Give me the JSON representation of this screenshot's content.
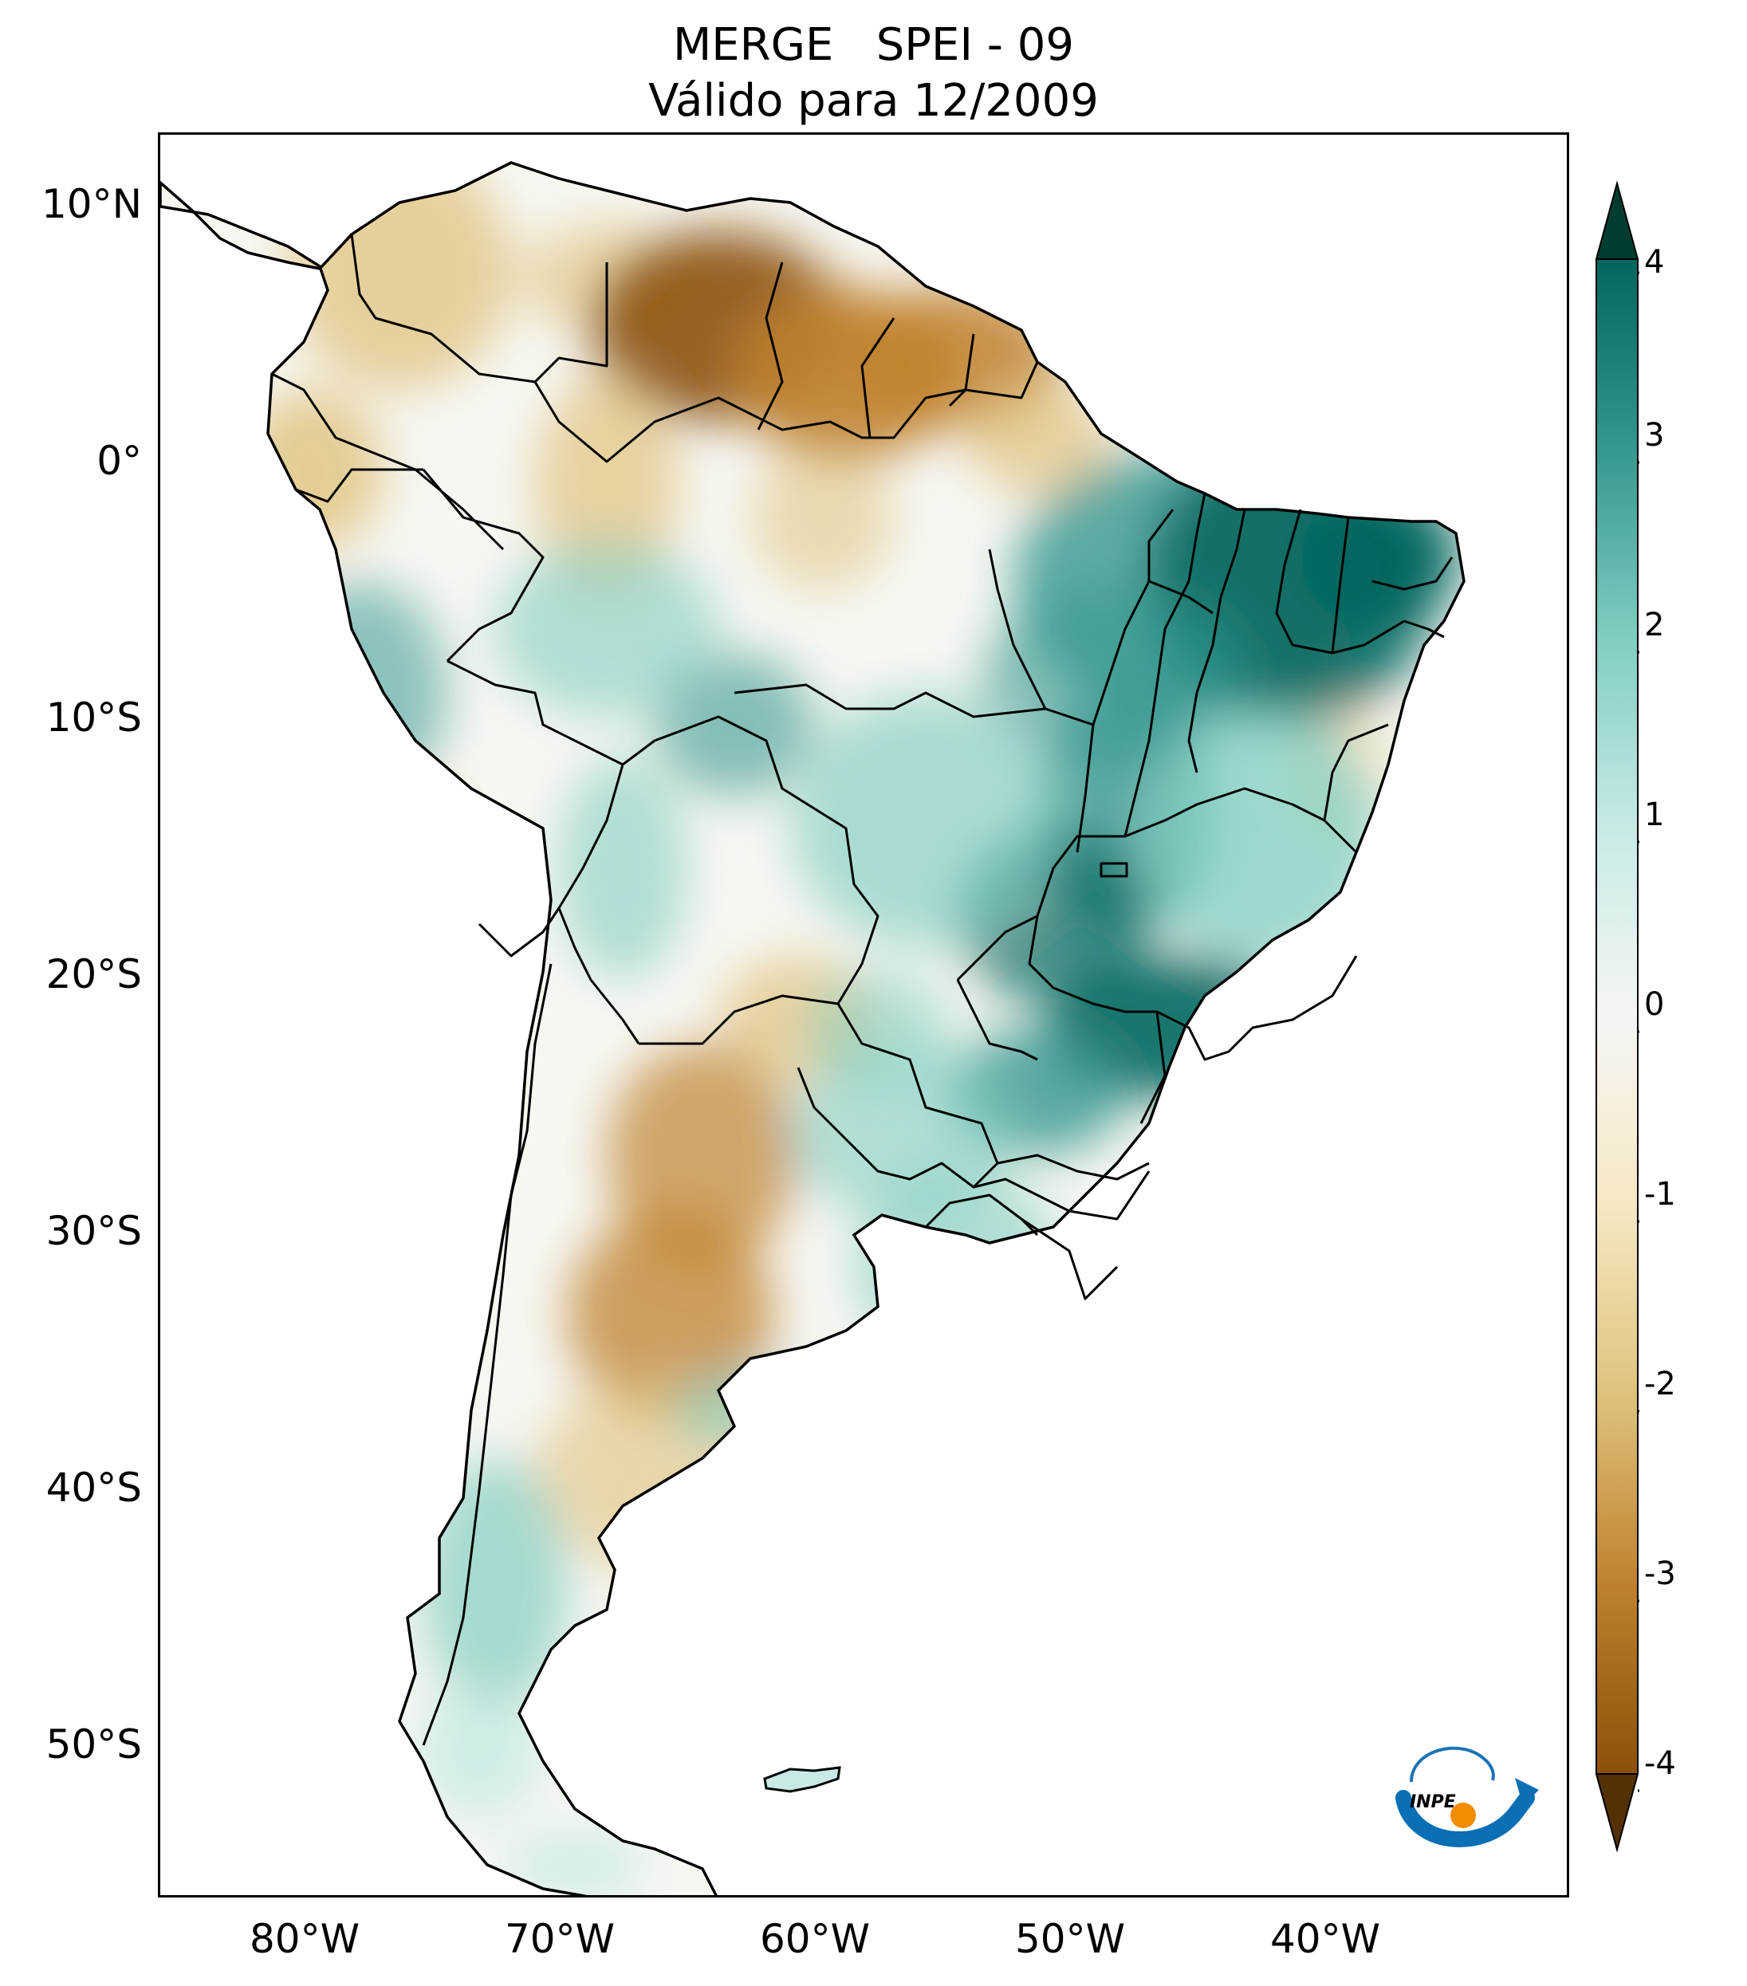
{
  "title": {
    "line1": "MERGE   SPEI - 09",
    "line2": "Válido para 12/2009"
  },
  "axes": {
    "lat_labels": [
      "10°N",
      "0°",
      "10°S",
      "20°S",
      "30°S",
      "40°S",
      "50°S"
    ],
    "lon_labels": [
      "80°W",
      "70°W",
      "60°W",
      "50°W",
      "40°W"
    ]
  },
  "colorbar": {
    "ticks": [
      "4",
      "3",
      "2",
      "1",
      "0",
      "-1",
      "-2",
      "-3",
      "-4"
    ],
    "colors": {
      "max": "#003c30",
      "strong_wet": "#01665e",
      "wet": "#35978f",
      "mild_wet": "#80cdc1",
      "light_wet": "#c7eae5",
      "neutral": "#f5f5f5",
      "light_dry": "#f6e8c3",
      "mild_dry": "#dfc27d",
      "dry": "#bf812d",
      "strong_dry": "#8c510a",
      "min": "#543005"
    }
  },
  "logo": {
    "text": "INPE"
  }
}
